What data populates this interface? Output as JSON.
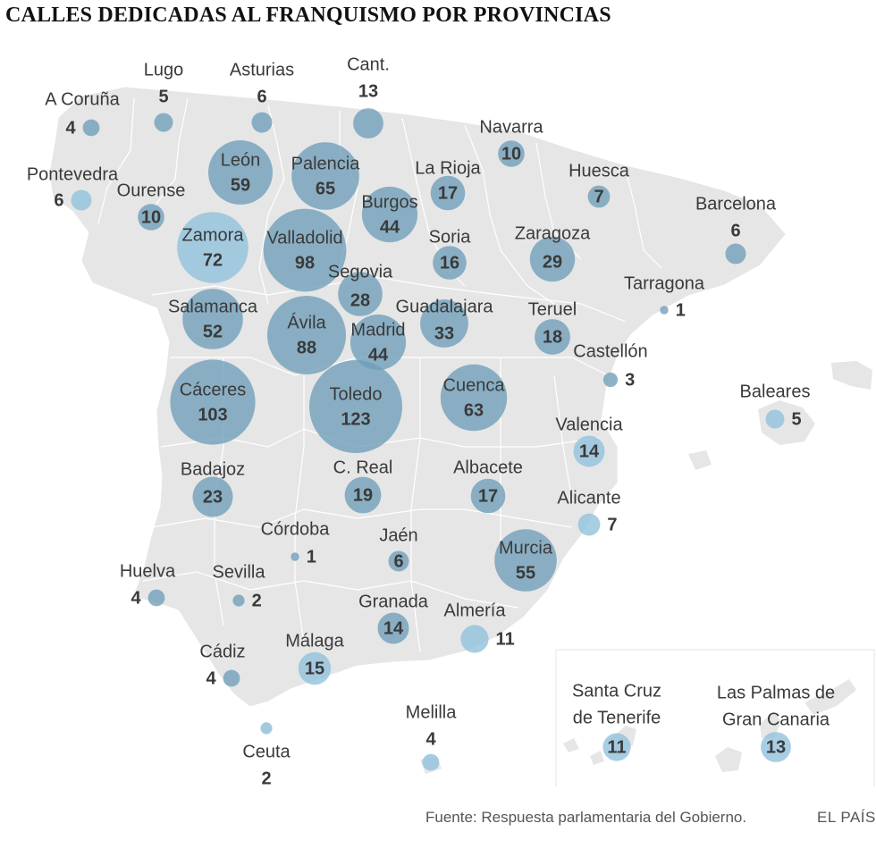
{
  "title": "CALLES DEDICADAS AL FRANQUISMO POR PROVINCIAS",
  "source": "Fuente: Respuesta parlamentaria del Gobierno.",
  "brand": "EL PAÍS",
  "colors": {
    "land": "#e6e6e6",
    "border": "#ffffff",
    "bubble": "#6e9db9",
    "bubble_light": "#8fc0dc",
    "text": "#3a3a3a"
  },
  "provinces": [
    {
      "id": "a-coruna",
      "name": "A Coruña",
      "value": "4"
    },
    {
      "id": "lugo",
      "name": "Lugo",
      "value": "5"
    },
    {
      "id": "asturias",
      "name": "Asturias",
      "value": "6"
    },
    {
      "id": "cantabria",
      "name": "Cant.",
      "value": "13"
    },
    {
      "id": "navarra",
      "name": "Navarra",
      "value": "10"
    },
    {
      "id": "pontevedra",
      "name": "Pontevedra",
      "value": "6"
    },
    {
      "id": "ourense",
      "name": "Ourense",
      "value": "10"
    },
    {
      "id": "leon",
      "name": "León",
      "value": "59"
    },
    {
      "id": "palencia",
      "name": "Palencia",
      "value": "65"
    },
    {
      "id": "la-rioja",
      "name": "La Rioja",
      "value": "17"
    },
    {
      "id": "huesca",
      "name": "Huesca",
      "value": "7"
    },
    {
      "id": "burgos",
      "name": "Burgos",
      "value": "44"
    },
    {
      "id": "barcelona",
      "name": "Barcelona",
      "value": "6"
    },
    {
      "id": "zamora",
      "name": "Zamora",
      "value": "72"
    },
    {
      "id": "valladolid",
      "name": "Valladolid",
      "value": "98"
    },
    {
      "id": "soria",
      "name": "Soria",
      "value": "16"
    },
    {
      "id": "zaragoza",
      "name": "Zaragoza",
      "value": "29"
    },
    {
      "id": "segovia",
      "name": "Segovia",
      "value": "28"
    },
    {
      "id": "tarragona",
      "name": "Tarragona",
      "value": "1"
    },
    {
      "id": "salamanca",
      "name": "Salamanca",
      "value": "52"
    },
    {
      "id": "guadalajara",
      "name": "Guadalajara",
      "value": "33"
    },
    {
      "id": "teruel",
      "name": "Teruel",
      "value": "18"
    },
    {
      "id": "avila",
      "name": "Ávila",
      "value": "88"
    },
    {
      "id": "madrid",
      "name": "Madrid",
      "value": "44"
    },
    {
      "id": "castellon",
      "name": "Castellón",
      "value": "3"
    },
    {
      "id": "caceres",
      "name": "Cáceres",
      "value": "103"
    },
    {
      "id": "toledo",
      "name": "Toledo",
      "value": "123"
    },
    {
      "id": "cuenca",
      "name": "Cuenca",
      "value": "63"
    },
    {
      "id": "baleares",
      "name": "Baleares",
      "value": "5"
    },
    {
      "id": "valencia",
      "name": "Valencia",
      "value": "14"
    },
    {
      "id": "badajoz",
      "name": "Badajoz",
      "value": "23"
    },
    {
      "id": "ciudad-real",
      "name": "C. Real",
      "value": "19"
    },
    {
      "id": "albacete",
      "name": "Albacete",
      "value": "17"
    },
    {
      "id": "alicante",
      "name": "Alicante",
      "value": "7"
    },
    {
      "id": "cordoba",
      "name": "Córdoba",
      "value": "1"
    },
    {
      "id": "jaen",
      "name": "Jaén",
      "value": "6"
    },
    {
      "id": "murcia",
      "name": "Murcia",
      "value": "55"
    },
    {
      "id": "huelva",
      "name": "Huelva",
      "value": "4"
    },
    {
      "id": "sevilla",
      "name": "Sevilla",
      "value": "2"
    },
    {
      "id": "granada",
      "name": "Granada",
      "value": "14"
    },
    {
      "id": "almeria",
      "name": "Almería",
      "value": "11"
    },
    {
      "id": "cadiz",
      "name": "Cádiz",
      "value": "4"
    },
    {
      "id": "malaga",
      "name": "Málaga",
      "value": "15"
    },
    {
      "id": "ceuta",
      "name": "Ceuta",
      "value": "2"
    },
    {
      "id": "melilla",
      "name": "Melilla",
      "value": "4"
    },
    {
      "id": "sc-tenerife",
      "name": "Santa Cruz de Tenerife",
      "name_lines": [
        "Santa Cruz",
        "de Tenerife"
      ],
      "value": "11"
    },
    {
      "id": "las-palmas",
      "name": "Las Palmas de Gran Canaria",
      "name_lines": [
        "Las Palmas de",
        "Gran Canaria"
      ],
      "value": "13"
    }
  ]
}
